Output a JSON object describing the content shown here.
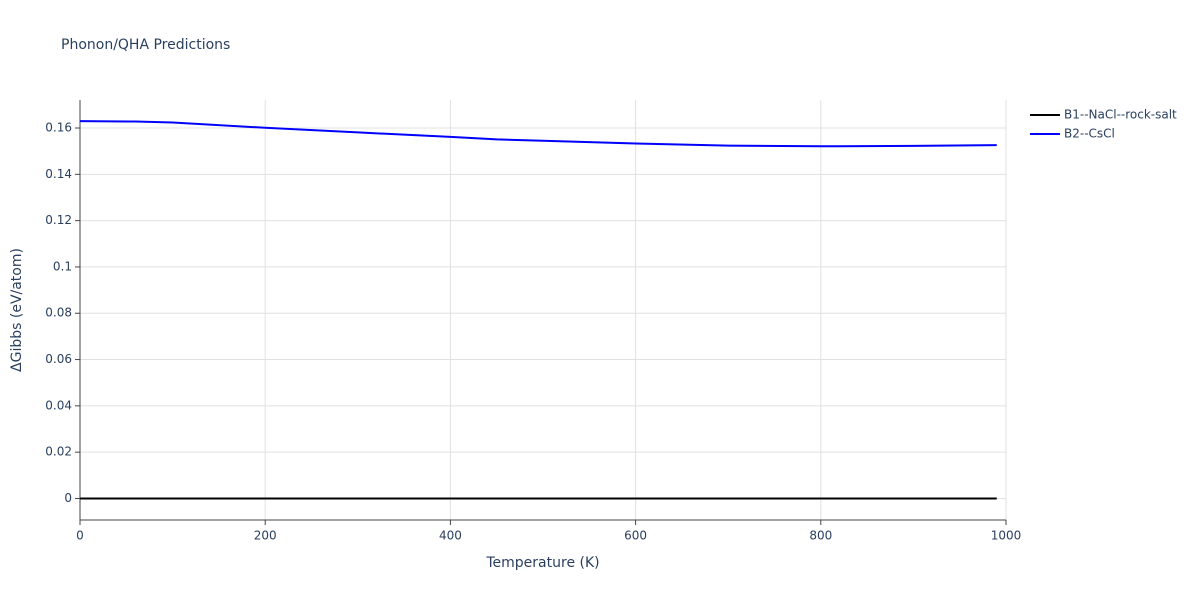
{
  "chart_data": {
    "type": "line",
    "title": "Phonon/QHA Predictions",
    "x_label": "Temperature (K)",
    "y_label": "ΔGibbs (eV/atom)",
    "x": [
      0,
      60,
      100,
      200,
      300,
      400,
      450,
      500,
      600,
      700,
      800,
      820,
      900,
      990
    ],
    "series": [
      {
        "name": "B1--NaCl--rock-salt",
        "color": "#000000",
        "values": [
          0,
          0,
          0,
          0,
          0,
          0,
          0,
          0,
          0,
          0,
          0,
          0,
          0,
          0
        ]
      },
      {
        "name": "B2--CsCl",
        "color": "#0000ff",
        "values": [
          0.163,
          0.1628,
          0.1624,
          0.1601,
          0.1581,
          0.1562,
          0.1551,
          0.1545,
          0.1533,
          0.1524,
          0.1521,
          0.1521,
          0.1523,
          0.1526
        ]
      }
    ],
    "xlim": [
      0,
      1000
    ],
    "xticks": [
      0,
      200,
      400,
      600,
      800,
      1000
    ],
    "ylim": [
      -0.0093,
      0.1721
    ],
    "yticks": [
      0,
      0.02,
      0.04,
      0.06,
      0.08,
      0.1,
      0.12,
      0.14,
      0.16
    ],
    "grid": true,
    "legend": "outside-right"
  }
}
